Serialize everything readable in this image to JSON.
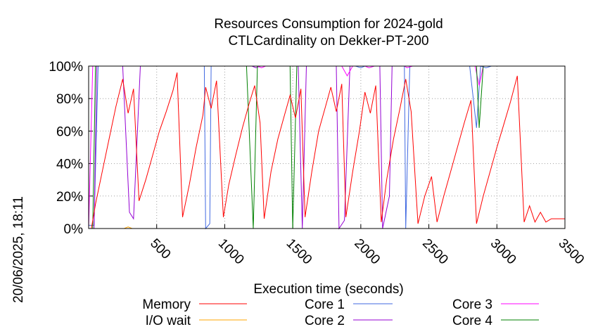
{
  "chart_data": {
    "type": "line",
    "title": [
      "Resources Consumption for 2024-gold",
      "CTLCardinality on Dekker-PT-200"
    ],
    "xlabel": "Execution time (seconds)",
    "ylabel": "",
    "side_label": "20/06/2025, 18:11",
    "xlim": [
      0,
      3500
    ],
    "ylim": [
      0,
      100
    ],
    "xticks": [
      500,
      1000,
      1500,
      2000,
      2500,
      3000,
      3500
    ],
    "yticks": [
      0,
      20,
      40,
      60,
      80,
      100
    ],
    "ytick_labels": [
      "0%",
      "20%",
      "40%",
      "60%",
      "80%",
      "100%"
    ],
    "grid": true,
    "legend_position": "bottom",
    "series": [
      {
        "name": "Memory",
        "color": "#ff0000",
        "points": [
          [
            0,
            0
          ],
          [
            20,
            0
          ],
          [
            50,
            15
          ],
          [
            100,
            35
          ],
          [
            150,
            55
          ],
          [
            200,
            75
          ],
          [
            250,
            92
          ],
          [
            290,
            71
          ],
          [
            330,
            86
          ],
          [
            370,
            17
          ],
          [
            420,
            30
          ],
          [
            470,
            45
          ],
          [
            520,
            60
          ],
          [
            570,
            72
          ],
          [
            620,
            85
          ],
          [
            650,
            96
          ],
          [
            690,
            7
          ],
          [
            740,
            27
          ],
          [
            790,
            50
          ],
          [
            840,
            70
          ],
          [
            860,
            87
          ],
          [
            900,
            74
          ],
          [
            940,
            91
          ],
          [
            990,
            7
          ],
          [
            1030,
            27
          ],
          [
            1080,
            45
          ],
          [
            1130,
            62
          ],
          [
            1180,
            77
          ],
          [
            1220,
            88
          ],
          [
            1260,
            65
          ],
          [
            1290,
            6
          ],
          [
            1340,
            35
          ],
          [
            1390,
            55
          ],
          [
            1440,
            70
          ],
          [
            1480,
            82
          ],
          [
            1520,
            68
          ],
          [
            1560,
            86
          ],
          [
            1590,
            7
          ],
          [
            1640,
            35
          ],
          [
            1690,
            60
          ],
          [
            1740,
            75
          ],
          [
            1780,
            87
          ],
          [
            1820,
            72
          ],
          [
            1860,
            89
          ],
          [
            1890,
            7
          ],
          [
            1940,
            35
          ],
          [
            1990,
            60
          ],
          [
            2030,
            84
          ],
          [
            2070,
            71
          ],
          [
            2110,
            88
          ],
          [
            2150,
            4
          ],
          [
            2190,
            30
          ],
          [
            2240,
            55
          ],
          [
            2290,
            75
          ],
          [
            2330,
            92
          ],
          [
            2370,
            72
          ],
          [
            2420,
            3
          ],
          [
            2470,
            20
          ],
          [
            2520,
            32
          ],
          [
            2560,
            4
          ],
          [
            2610,
            20
          ],
          [
            2660,
            35
          ],
          [
            2710,
            50
          ],
          [
            2760,
            65
          ],
          [
            2810,
            79
          ],
          [
            2850,
            3
          ],
          [
            2900,
            20
          ],
          [
            2950,
            35
          ],
          [
            3000,
            50
          ],
          [
            3050,
            64
          ],
          [
            3100,
            78
          ],
          [
            3150,
            94
          ],
          [
            3200,
            4
          ],
          [
            3240,
            14
          ],
          [
            3280,
            4
          ],
          [
            3320,
            10
          ],
          [
            3360,
            4
          ],
          [
            3400,
            6
          ],
          [
            3500,
            6
          ]
        ]
      },
      {
        "name": "I/O wait",
        "color": "#ffa500",
        "points": [
          [
            0,
            0
          ],
          [
            260,
            0
          ],
          [
            290,
            1
          ],
          [
            320,
            0
          ],
          [
            3500,
            0
          ]
        ]
      },
      {
        "name": "Core 1",
        "color": "#4169e1",
        "points": [
          [
            0,
            2
          ],
          [
            40,
            2
          ],
          [
            70,
            100
          ],
          [
            850,
            100
          ],
          [
            860,
            0
          ],
          [
            890,
            3
          ],
          [
            900,
            100
          ],
          [
            1200,
            100
          ],
          [
            1240,
            100
          ],
          [
            1500,
            100
          ],
          [
            1520,
            100
          ],
          [
            1960,
            100
          ],
          [
            2000,
            99
          ],
          [
            2030,
            100
          ],
          [
            2320,
            100
          ],
          [
            2330,
            0
          ],
          [
            2360,
            100
          ],
          [
            2800,
            100
          ],
          [
            2850,
            62
          ],
          [
            2880,
            100
          ],
          [
            2920,
            99
          ],
          [
            2960,
            100
          ],
          [
            3500,
            100
          ]
        ]
      },
      {
        "name": "Core 2",
        "color": "#9400d3",
        "points": [
          [
            0,
            0
          ],
          [
            40,
            0
          ],
          [
            60,
            100
          ],
          [
            250,
            100
          ],
          [
            300,
            10
          ],
          [
            330,
            6
          ],
          [
            380,
            100
          ],
          [
            1200,
            100
          ],
          [
            1230,
            99
          ],
          [
            1260,
            100
          ],
          [
            1540,
            100
          ],
          [
            1570,
            0
          ],
          [
            1600,
            100
          ],
          [
            1820,
            100
          ],
          [
            1840,
            0
          ],
          [
            1880,
            5
          ],
          [
            1920,
            100
          ],
          [
            2140,
            100
          ],
          [
            2160,
            0
          ],
          [
            2210,
            20
          ],
          [
            2230,
            100
          ],
          [
            3500,
            100
          ]
        ]
      },
      {
        "name": "Core 3",
        "color": "#ff00ff",
        "points": [
          [
            0,
            0
          ],
          [
            30,
            100
          ],
          [
            1240,
            100
          ],
          [
            1270,
            99
          ],
          [
            1300,
            100
          ],
          [
            1860,
            100
          ],
          [
            1900,
            94
          ],
          [
            1940,
            100
          ],
          [
            2030,
            100
          ],
          [
            2060,
            99
          ],
          [
            2100,
            100
          ],
          [
            2320,
            100
          ],
          [
            2340,
            99
          ],
          [
            2380,
            100
          ],
          [
            2840,
            100
          ],
          [
            2870,
            88
          ],
          [
            2900,
            100
          ],
          [
            3500,
            100
          ]
        ]
      },
      {
        "name": "Core 4",
        "color": "#008000",
        "points": [
          [
            0,
            0
          ],
          [
            30,
            0
          ],
          [
            50,
            100
          ],
          [
            1160,
            100
          ],
          [
            1210,
            0
          ],
          [
            1240,
            100
          ],
          [
            1480,
            100
          ],
          [
            1500,
            0
          ],
          [
            1530,
            100
          ],
          [
            2850,
            100
          ],
          [
            2870,
            62
          ],
          [
            2900,
            100
          ],
          [
            3500,
            100
          ]
        ]
      }
    ]
  }
}
